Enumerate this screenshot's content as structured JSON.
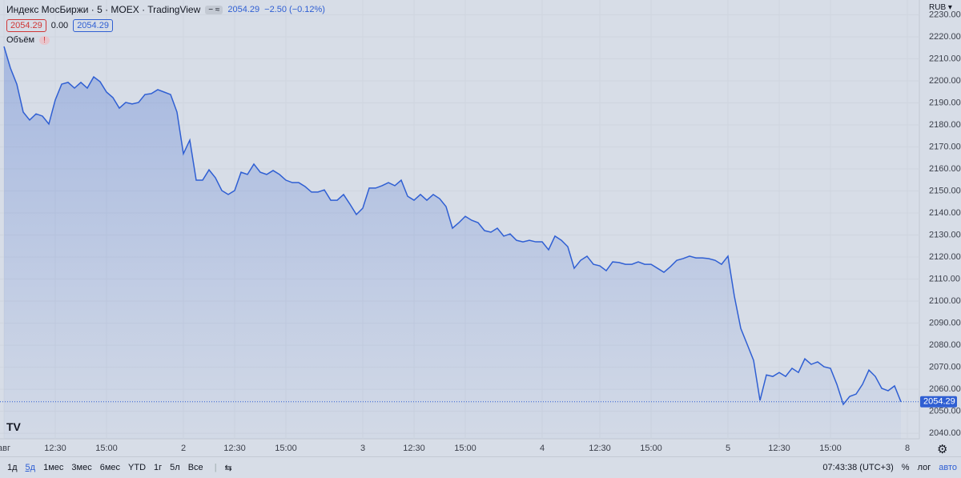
{
  "header": {
    "symbol": "Индекс МосБиржи · 5 · MOEX · TradingView",
    "price": "2054.29",
    "change": "−2.50 (−0.12%)",
    "bid": "2054.29",
    "spread": "0.00",
    "ask": "2054.29",
    "volume": "Объём",
    "currency": "RUB"
  },
  "toolbar": {
    "ranges": [
      "1д",
      "5д",
      "1мес",
      "3мес",
      "6мес",
      "YTD",
      "1г",
      "5л",
      "Все"
    ],
    "active": "5д",
    "time": "07:43:38 (UTC+3)",
    "percent": "%",
    "log": "лог",
    "auto": "авто"
  },
  "chart_data": {
    "type": "area",
    "color": "#2f5fd3",
    "grid": true,
    "categories": [
      "авг",
      null,
      null,
      null,
      null,
      null,
      null,
      null,
      "12:30",
      null,
      null,
      null,
      null,
      null,
      null,
      null,
      "15:00",
      null,
      null,
      null,
      null,
      null,
      null,
      null,
      null,
      null,
      null,
      null,
      "2",
      null,
      null,
      null,
      null,
      null,
      null,
      null,
      "12:30",
      null,
      null,
      null,
      null,
      null,
      null,
      null,
      "15:00",
      null,
      null,
      null,
      null,
      null,
      null,
      null,
      null,
      null,
      null,
      null,
      "3",
      null,
      null,
      null,
      null,
      null,
      null,
      null,
      "12:30",
      null,
      null,
      null,
      null,
      null,
      null,
      null,
      "15:00",
      null,
      null,
      null,
      null,
      null,
      null,
      null,
      null,
      null,
      null,
      null,
      "4",
      null,
      null,
      null,
      null,
      null,
      null,
      null,
      null,
      "12:30",
      null,
      null,
      null,
      null,
      null,
      null,
      null,
      "15:00",
      null,
      null,
      null,
      null,
      null,
      null,
      null,
      null,
      null,
      null,
      null,
      "5",
      null,
      null,
      null,
      null,
      null,
      null,
      null,
      "12:30",
      null,
      null,
      null,
      null,
      null,
      null,
      null,
      "15:00",
      null,
      null,
      null,
      null,
      null,
      null,
      null,
      null,
      null,
      null,
      null,
      "8"
    ],
    "values": [
      2215.6,
      2205.8,
      2198.5,
      2185.8,
      2182.2,
      2185,
      2184,
      2180.4,
      2191.3,
      2198.5,
      2199.3,
      2196.7,
      2199.3,
      2196.7,
      2201.8,
      2199.6,
      2194.9,
      2192.4,
      2187.6,
      2190.2,
      2189.5,
      2190.2,
      2193.8,
      2194.2,
      2196,
      2194.9,
      2193.8,
      2185.8,
      2166.9,
      2173.1,
      2154.9,
      2154.9,
      2159.6,
      2156,
      2150.2,
      2148.4,
      2150.2,
      2158.5,
      2157.5,
      2162.2,
      2158.5,
      2157.5,
      2159.3,
      2157.5,
      2154.9,
      2153.8,
      2153.8,
      2152,
      2149.5,
      2149.5,
      2150.5,
      2145.8,
      2145.8,
      2148.4,
      2144,
      2139.3,
      2142.2,
      2151.3,
      2151.3,
      2152.4,
      2153.8,
      2152.4,
      2154.9,
      2147.6,
      2145.8,
      2148.4,
      2145.8,
      2148.4,
      2146.5,
      2142.9,
      2133.1,
      2135.6,
      2138.5,
      2136.7,
      2135.6,
      2132,
      2131.3,
      2133.1,
      2129.5,
      2130.5,
      2127.6,
      2126.9,
      2127.6,
      2126.9,
      2126.9,
      2123.3,
      2129.5,
      2127.6,
      2124.7,
      2114.9,
      2118.5,
      2120.4,
      2116.7,
      2116,
      2113.8,
      2117.8,
      2117.5,
      2116.7,
      2116.7,
      2117.8,
      2116.7,
      2116.7,
      2114.9,
      2113.1,
      2115.6,
      2118.5,
      2119.3,
      2120.4,
      2119.6,
      2119.6,
      2119.3,
      2118.5,
      2116.7,
      2120.4,
      2102.2,
      2087.6,
      2080.4,
      2073.1,
      2054.9,
      2066.5,
      2065.8,
      2067.6,
      2065.8,
      2069.5,
      2067.6,
      2073.8,
      2071.3,
      2072.4,
      2070.2,
      2069.5,
      2062.2,
      2053.1,
      2056.7,
      2057.8,
      2062.2,
      2068.7,
      2065.8,
      2060.4,
      2059.3,
      2061.5,
      2054.29,
      null
    ],
    "ylim": [
      2037.5,
      2236.7
    ],
    "yticks": [
      {
        "value": 2040,
        "label": "2040.00"
      },
      {
        "value": 2050,
        "label": "2050.00"
      },
      {
        "value": 2060,
        "label": "2060.00"
      },
      {
        "value": 2070,
        "label": "2070.00"
      },
      {
        "value": 2080,
        "label": "2080.00"
      },
      {
        "value": 2090,
        "label": "2090.00"
      },
      {
        "value": 2100,
        "label": "2100.00"
      },
      {
        "value": 2110,
        "label": "2110.00"
      },
      {
        "value": 2120,
        "label": "2120.00"
      },
      {
        "value": 2130,
        "label": "2130.00"
      },
      {
        "value": 2140,
        "label": "2140.00"
      },
      {
        "value": 2150,
        "label": "2150.00"
      },
      {
        "value": 2160,
        "label": "2160.00"
      },
      {
        "value": 2170,
        "label": "2170.00"
      },
      {
        "value": 2180,
        "label": "2180.00"
      },
      {
        "value": 2190,
        "label": "2190.00"
      },
      {
        "value": 2200,
        "label": "2200.00"
      },
      {
        "value": 2210,
        "label": "2210.00"
      },
      {
        "value": 2220,
        "label": "2220.00"
      },
      {
        "value": 2230,
        "label": "2230.00"
      }
    ]
  }
}
